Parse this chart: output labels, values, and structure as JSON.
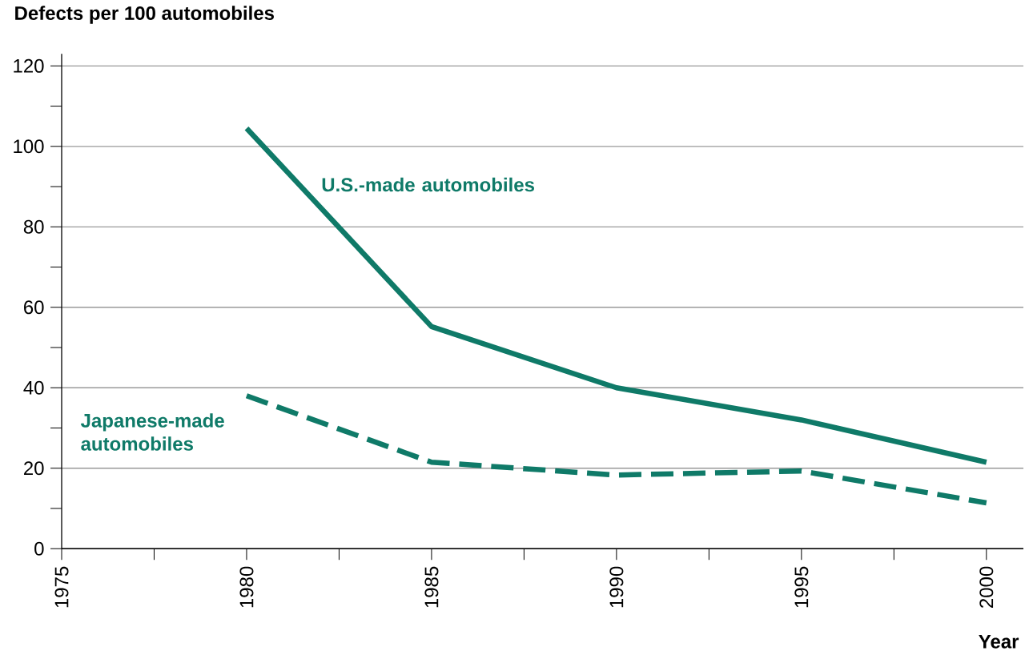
{
  "chart_data": {
    "type": "line",
    "xlabel": "Year",
    "ylabel": "Defects per 100 automobiles",
    "xlim": [
      1975,
      2001
    ],
    "ylim": [
      0,
      123
    ],
    "xticks": [
      1975,
      {
        "value": 1977.5,
        "label": null
      },
      1980,
      {
        "value": 1982.5,
        "label": null
      },
      1985,
      {
        "value": 1987.5,
        "label": null
      },
      1990,
      {
        "value": 1992.5,
        "label": null
      },
      1995,
      {
        "value": 1997.5,
        "label": null
      },
      2000
    ],
    "yticks": [
      0,
      {
        "value": 10,
        "label": null
      },
      20,
      {
        "value": 30,
        "label": null
      },
      40,
      {
        "value": 50,
        "label": null
      },
      60,
      {
        "value": 70,
        "label": null
      },
      80,
      {
        "value": 90,
        "label": null
      },
      100,
      {
        "value": 110,
        "label": null
      },
      120
    ],
    "grid": "y",
    "legend": false,
    "marker": "none",
    "series": [
      {
        "name": "U.S.-made automobiles",
        "color": "#0f7a68",
        "line_style": "solid",
        "x": [
          1980,
          1985,
          1990,
          1995,
          2000
        ],
        "values": [
          104.5,
          55.2,
          40,
          32,
          21.5
        ]
      },
      {
        "name": "Japanese-made automobiles",
        "color": "#0f7a68",
        "line_style": "dashed",
        "x": [
          1980,
          1985,
          1990,
          1995,
          2000
        ],
        "values": [
          38,
          21.5,
          18.3,
          19.3,
          11.4
        ]
      }
    ]
  }
}
